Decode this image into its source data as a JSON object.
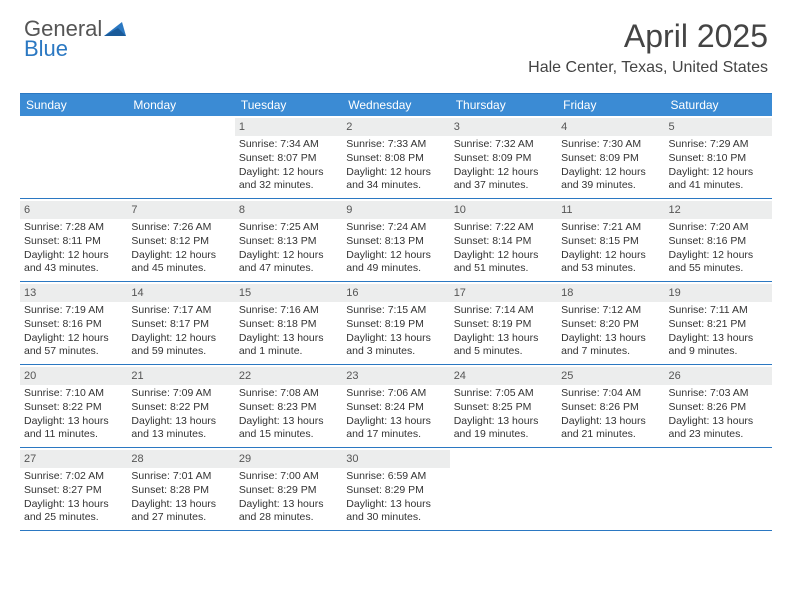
{
  "logo": {
    "line1": "General",
    "line2": "Blue",
    "triangle_color": "#2b78c2",
    "text_color_gray": "#555555",
    "text_color_blue": "#2b78c2"
  },
  "title": "April 2025",
  "subtitle": "Hale Center, Texas, United States",
  "colors": {
    "header_bg": "#3b8bd4",
    "header_text": "#ffffff",
    "daynum_bg": "#eceded",
    "border": "#2b78c2",
    "body_text": "#333333"
  },
  "dayHeaders": [
    "Sunday",
    "Monday",
    "Tuesday",
    "Wednesday",
    "Thursday",
    "Friday",
    "Saturday"
  ],
  "weeks": [
    [
      null,
      null,
      {
        "num": "1",
        "sunrise": "Sunrise: 7:34 AM",
        "sunset": "Sunset: 8:07 PM",
        "day1": "Daylight: 12 hours",
        "day2": "and 32 minutes."
      },
      {
        "num": "2",
        "sunrise": "Sunrise: 7:33 AM",
        "sunset": "Sunset: 8:08 PM",
        "day1": "Daylight: 12 hours",
        "day2": "and 34 minutes."
      },
      {
        "num": "3",
        "sunrise": "Sunrise: 7:32 AM",
        "sunset": "Sunset: 8:09 PM",
        "day1": "Daylight: 12 hours",
        "day2": "and 37 minutes."
      },
      {
        "num": "4",
        "sunrise": "Sunrise: 7:30 AM",
        "sunset": "Sunset: 8:09 PM",
        "day1": "Daylight: 12 hours",
        "day2": "and 39 minutes."
      },
      {
        "num": "5",
        "sunrise": "Sunrise: 7:29 AM",
        "sunset": "Sunset: 8:10 PM",
        "day1": "Daylight: 12 hours",
        "day2": "and 41 minutes."
      }
    ],
    [
      {
        "num": "6",
        "sunrise": "Sunrise: 7:28 AM",
        "sunset": "Sunset: 8:11 PM",
        "day1": "Daylight: 12 hours",
        "day2": "and 43 minutes."
      },
      {
        "num": "7",
        "sunrise": "Sunrise: 7:26 AM",
        "sunset": "Sunset: 8:12 PM",
        "day1": "Daylight: 12 hours",
        "day2": "and 45 minutes."
      },
      {
        "num": "8",
        "sunrise": "Sunrise: 7:25 AM",
        "sunset": "Sunset: 8:13 PM",
        "day1": "Daylight: 12 hours",
        "day2": "and 47 minutes."
      },
      {
        "num": "9",
        "sunrise": "Sunrise: 7:24 AM",
        "sunset": "Sunset: 8:13 PM",
        "day1": "Daylight: 12 hours",
        "day2": "and 49 minutes."
      },
      {
        "num": "10",
        "sunrise": "Sunrise: 7:22 AM",
        "sunset": "Sunset: 8:14 PM",
        "day1": "Daylight: 12 hours",
        "day2": "and 51 minutes."
      },
      {
        "num": "11",
        "sunrise": "Sunrise: 7:21 AM",
        "sunset": "Sunset: 8:15 PM",
        "day1": "Daylight: 12 hours",
        "day2": "and 53 minutes."
      },
      {
        "num": "12",
        "sunrise": "Sunrise: 7:20 AM",
        "sunset": "Sunset: 8:16 PM",
        "day1": "Daylight: 12 hours",
        "day2": "and 55 minutes."
      }
    ],
    [
      {
        "num": "13",
        "sunrise": "Sunrise: 7:19 AM",
        "sunset": "Sunset: 8:16 PM",
        "day1": "Daylight: 12 hours",
        "day2": "and 57 minutes."
      },
      {
        "num": "14",
        "sunrise": "Sunrise: 7:17 AM",
        "sunset": "Sunset: 8:17 PM",
        "day1": "Daylight: 12 hours",
        "day2": "and 59 minutes."
      },
      {
        "num": "15",
        "sunrise": "Sunrise: 7:16 AM",
        "sunset": "Sunset: 8:18 PM",
        "day1": "Daylight: 13 hours",
        "day2": "and 1 minute."
      },
      {
        "num": "16",
        "sunrise": "Sunrise: 7:15 AM",
        "sunset": "Sunset: 8:19 PM",
        "day1": "Daylight: 13 hours",
        "day2": "and 3 minutes."
      },
      {
        "num": "17",
        "sunrise": "Sunrise: 7:14 AM",
        "sunset": "Sunset: 8:19 PM",
        "day1": "Daylight: 13 hours",
        "day2": "and 5 minutes."
      },
      {
        "num": "18",
        "sunrise": "Sunrise: 7:12 AM",
        "sunset": "Sunset: 8:20 PM",
        "day1": "Daylight: 13 hours",
        "day2": "and 7 minutes."
      },
      {
        "num": "19",
        "sunrise": "Sunrise: 7:11 AM",
        "sunset": "Sunset: 8:21 PM",
        "day1": "Daylight: 13 hours",
        "day2": "and 9 minutes."
      }
    ],
    [
      {
        "num": "20",
        "sunrise": "Sunrise: 7:10 AM",
        "sunset": "Sunset: 8:22 PM",
        "day1": "Daylight: 13 hours",
        "day2": "and 11 minutes."
      },
      {
        "num": "21",
        "sunrise": "Sunrise: 7:09 AM",
        "sunset": "Sunset: 8:22 PM",
        "day1": "Daylight: 13 hours",
        "day2": "and 13 minutes."
      },
      {
        "num": "22",
        "sunrise": "Sunrise: 7:08 AM",
        "sunset": "Sunset: 8:23 PM",
        "day1": "Daylight: 13 hours",
        "day2": "and 15 minutes."
      },
      {
        "num": "23",
        "sunrise": "Sunrise: 7:06 AM",
        "sunset": "Sunset: 8:24 PM",
        "day1": "Daylight: 13 hours",
        "day2": "and 17 minutes."
      },
      {
        "num": "24",
        "sunrise": "Sunrise: 7:05 AM",
        "sunset": "Sunset: 8:25 PM",
        "day1": "Daylight: 13 hours",
        "day2": "and 19 minutes."
      },
      {
        "num": "25",
        "sunrise": "Sunrise: 7:04 AM",
        "sunset": "Sunset: 8:26 PM",
        "day1": "Daylight: 13 hours",
        "day2": "and 21 minutes."
      },
      {
        "num": "26",
        "sunrise": "Sunrise: 7:03 AM",
        "sunset": "Sunset: 8:26 PM",
        "day1": "Daylight: 13 hours",
        "day2": "and 23 minutes."
      }
    ],
    [
      {
        "num": "27",
        "sunrise": "Sunrise: 7:02 AM",
        "sunset": "Sunset: 8:27 PM",
        "day1": "Daylight: 13 hours",
        "day2": "and 25 minutes."
      },
      {
        "num": "28",
        "sunrise": "Sunrise: 7:01 AM",
        "sunset": "Sunset: 8:28 PM",
        "day1": "Daylight: 13 hours",
        "day2": "and 27 minutes."
      },
      {
        "num": "29",
        "sunrise": "Sunrise: 7:00 AM",
        "sunset": "Sunset: 8:29 PM",
        "day1": "Daylight: 13 hours",
        "day2": "and 28 minutes."
      },
      {
        "num": "30",
        "sunrise": "Sunrise: 6:59 AM",
        "sunset": "Sunset: 8:29 PM",
        "day1": "Daylight: 13 hours",
        "day2": "and 30 minutes."
      },
      null,
      null,
      null
    ]
  ]
}
